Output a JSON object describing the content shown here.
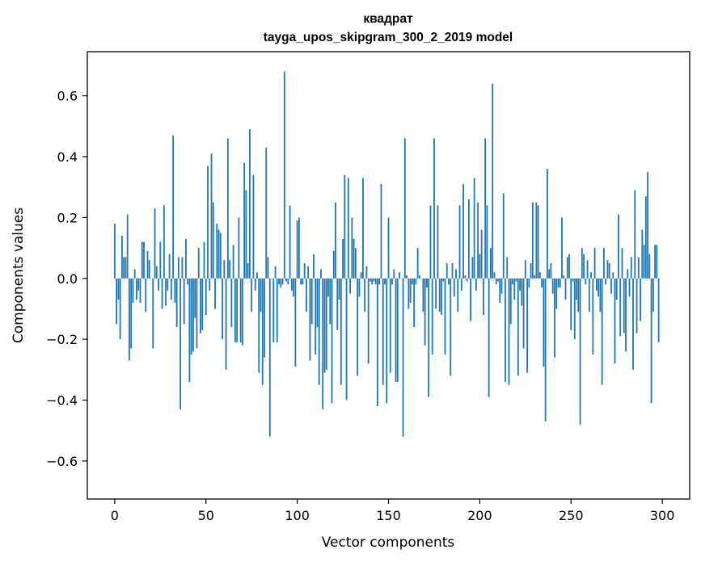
{
  "chart_data": {
    "type": "bar",
    "title": "квадрат",
    "subtitle": "tayga_upos_skipgram_300_2_2019 model",
    "xlabel": "Vector components",
    "ylabel": "Components values",
    "xlim": [
      -15,
      315
    ],
    "ylim": [
      -0.725,
      0.745
    ],
    "xticks": [
      0,
      50,
      100,
      150,
      200,
      250,
      300
    ],
    "xtick_labels": [
      "0",
      "50",
      "100",
      "150",
      "200",
      "250",
      "300"
    ],
    "yticks": [
      -0.6,
      -0.4,
      -0.2,
      0.0,
      0.2,
      0.4,
      0.6
    ],
    "ytick_labels": [
      "−0.6",
      "−0.4",
      "−0.2",
      "0.0",
      "0.2",
      "0.4",
      "0.6"
    ],
    "bar_color": "#1f77b4",
    "grid": false,
    "values": [
      0.18,
      -0.15,
      -0.07,
      -0.2,
      0.14,
      0.07,
      0.07,
      0.21,
      -0.27,
      -0.23,
      -0.08,
      0.03,
      -0.07,
      -0.04,
      -0.08,
      0.12,
      0.12,
      -0.11,
      0.09,
      0.06,
      0.0,
      -0.23,
      0.23,
      0.04,
      -0.04,
      0.12,
      -0.1,
      0.24,
      -0.09,
      -0.04,
      0.08,
      -0.07,
      0.47,
      -0.08,
      -0.16,
      0.07,
      -0.43,
      0.07,
      -0.15,
      0.13,
      -0.02,
      -0.34,
      -0.25,
      -0.24,
      -0.13,
      -0.23,
      0.1,
      -0.18,
      -0.17,
      0.12,
      -0.12,
      0.37,
      -0.04,
      0.41,
      0.25,
      -0.1,
      0.18,
      0.16,
      0.15,
      -0.2,
      0.06,
      -0.3,
      0.46,
      0.06,
      -0.16,
      0.11,
      -0.21,
      -0.21,
      0.2,
      -0.21,
      -0.22,
      0.38,
      0.29,
      0.05,
      0.49,
      -0.11,
      0.34,
      -0.04,
      0.02,
      -0.31,
      -0.11,
      -0.35,
      -0.26,
      0.43,
      0.07,
      -0.52,
      0.0,
      -0.21,
      0.04,
      -0.21,
      -0.02,
      -0.03,
      -0.02,
      0.68,
      -0.01,
      -0.02,
      0.24,
      -0.04,
      -0.06,
      -0.29,
      0.19,
      0.2,
      -0.02,
      -0.02,
      0.05,
      -0.11,
      0.04,
      -0.27,
      -0.15,
      0.08,
      -0.25,
      -0.16,
      -0.35,
      0.03,
      -0.43,
      -0.31,
      -0.3,
      -0.06,
      -0.15,
      -0.41,
      0.09,
      0.25,
      -0.17,
      -0.07,
      -0.35,
      0.13,
      0.34,
      -0.4,
      0.33,
      -0.05,
      0.2,
      0.13,
      0.1,
      -0.32,
      -0.06,
      0.02,
      0.33,
      -0.11,
      0.04,
      -0.28,
      -0.01,
      -0.02,
      -0.01,
      -0.02,
      -0.42,
      -0.02,
      0.31,
      -0.35,
      -0.02,
      -0.41,
      0.2,
      -0.31,
      -0.02,
      0.03,
      -0.34,
      -0.34,
      0.02,
      0.0,
      -0.52,
      0.46,
      0.01,
      -0.1,
      -0.08,
      -0.02,
      -0.16,
      -0.02,
      0.1,
      0.01,
      0.0,
      -0.11,
      -0.22,
      -0.03,
      -0.39,
      0.24,
      -0.25,
      0.46,
      -0.1,
      0.24,
      -0.11,
      -0.12,
      -0.01,
      -0.25,
      0.05,
      -0.02,
      -0.32,
      0.05,
      -0.06,
      0.03,
      -0.11,
      0.24,
      -0.04,
      0.31,
      0.01,
      -0.01,
      0.26,
      -0.14,
      0.07,
      0.33,
      -0.04,
      0.25,
      0.08,
      0.16,
      -0.12,
      0.46,
      0.24,
      -0.39,
      0.1,
      0.64,
      0.02,
      -0.02,
      -0.01,
      -0.08,
      -0.05,
      0.28,
      -0.34,
      0.07,
      -0.35,
      -0.15,
      -0.02,
      -0.07,
      -0.01,
      -0.32,
      -0.04,
      -0.09,
      -0.23,
      0.06,
      -0.31,
      -0.03,
      0.05,
      0.25,
      0.01,
      0.25,
      0.24,
      0.02,
      -0.03,
      -0.29,
      -0.47,
      0.36,
      0.03,
      0.05,
      -0.05,
      -0.26,
      -0.1,
      -0.03,
      -0.03,
      0.2,
      0.01,
      -0.07,
      0.07,
      0.08,
      -0.17,
      -0.01,
      -0.2,
      -0.07,
      -0.11,
      -0.48,
      0.1,
      0.08,
      -0.02,
      0.06,
      -0.11,
      0.02,
      -0.25,
      0.1,
      -0.04,
      -0.06,
      -0.11,
      -0.35,
      0.1,
      -0.02,
      0.06,
      0.05,
      -0.05,
      0.02,
      -0.28,
      -0.07,
      0.21,
      -0.19,
      0.1,
      -0.18,
      -0.24,
      0.03,
      -0.06,
      0.07,
      -0.3,
      0.29,
      -0.18,
      0.07,
      -0.14,
      0.16,
      0.11,
      0.27,
      0.35,
      0.08,
      -0.41,
      -0.11,
      0.11,
      0.11,
      -0.21,
      0.0
    ]
  }
}
